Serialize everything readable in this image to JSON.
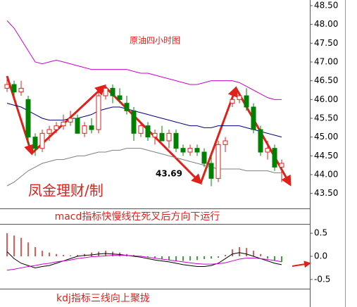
{
  "chart_data": [
    {
      "type": "candlestick",
      "title": "原油四小时图",
      "annotations": [
        "43.69",
        "凤金理财/制"
      ],
      "categories": [
        null,
        null,
        null,
        null,
        null,
        null,
        null,
        null,
        null,
        null,
        null,
        null,
        null,
        null,
        null,
        null,
        null,
        null,
        null,
        null,
        null,
        null,
        null,
        null,
        null,
        null,
        null,
        null,
        null,
        null,
        null,
        null,
        null,
        null,
        null,
        null,
        null,
        null,
        null,
        null
      ],
      "open": [
        46.3,
        46.4,
        46.2,
        46.0,
        45.0,
        44.7,
        45.1,
        45.2,
        45.3,
        45.4,
        45.5,
        45.1,
        45.3,
        45.2,
        46.1,
        46.3,
        46.1,
        45.9,
        45.7,
        45.1,
        45.3,
        45.0,
        45.1,
        44.9,
        45.1,
        44.7,
        44.6,
        44.7,
        44.6,
        44.3,
        43.9,
        44.8,
        45.9,
        46.0,
        46.1,
        45.8,
        45.2,
        44.6,
        44.7,
        44.2
      ],
      "high": [
        46.6,
        46.5,
        46.5,
        46.1,
        45.1,
        45.2,
        45.3,
        45.4,
        45.6,
        45.7,
        45.6,
        45.4,
        45.5,
        46.2,
        46.4,
        46.4,
        46.3,
        46.1,
        45.8,
        45.4,
        45.4,
        45.2,
        45.3,
        45.2,
        45.2,
        44.8,
        44.8,
        44.8,
        44.7,
        44.5,
        44.9,
        45.0,
        46.1,
        46.2,
        46.3,
        45.9,
        45.3,
        44.9,
        44.8,
        44.4
      ],
      "low": [
        46.2,
        46.1,
        46.1,
        44.8,
        44.5,
        44.6,
        44.9,
        45.1,
        45.2,
        45.3,
        45.1,
        45.0,
        45.1,
        45.1,
        46.0,
        45.9,
        45.9,
        45.6,
        44.9,
        45.0,
        44.9,
        44.8,
        44.9,
        44.7,
        44.6,
        44.5,
        44.5,
        44.5,
        44.2,
        43.69,
        43.8,
        44.6,
        45.8,
        45.9,
        45.7,
        45.1,
        44.5,
        44.4,
        44.1,
        43.8
      ],
      "close": [
        46.4,
        46.2,
        46.3,
        45.0,
        44.7,
        45.1,
        45.2,
        45.3,
        45.4,
        45.5,
        45.1,
        45.3,
        45.2,
        46.1,
        46.3,
        46.1,
        46.0,
        45.7,
        45.1,
        45.3,
        45.0,
        45.1,
        44.9,
        45.1,
        44.7,
        44.6,
        44.7,
        44.6,
        44.3,
        43.9,
        44.8,
        44.9,
        46.0,
        46.1,
        45.8,
        45.2,
        44.6,
        44.7,
        44.2,
        44.3
      ],
      "up_color": "#e0201a",
      "down_color": "#008000",
      "lines": [
        {
          "color": "#cc00cc",
          "values": [
            48.1,
            47.9,
            47.6,
            47.3,
            47.0,
            46.95,
            47.0,
            47.05,
            47.0,
            46.95,
            46.9,
            46.85,
            46.8,
            46.8,
            46.8,
            46.8,
            46.8,
            46.8,
            46.75,
            46.7,
            46.7,
            46.65,
            46.6,
            46.55,
            46.5,
            46.45,
            46.4,
            46.4,
            46.45,
            46.5,
            46.5,
            46.5,
            46.5,
            46.45,
            46.35,
            46.25,
            46.15,
            46.05,
            46.0,
            46.0
          ]
        },
        {
          "color": "#000080",
          "values": [
            45.9,
            45.85,
            45.8,
            45.7,
            45.6,
            45.5,
            45.45,
            45.45,
            45.45,
            45.5,
            45.5,
            45.55,
            45.6,
            45.7,
            45.75,
            45.8,
            45.8,
            45.75,
            45.7,
            45.65,
            45.6,
            45.55,
            45.5,
            45.45,
            45.4,
            45.35,
            45.3,
            45.3,
            45.25,
            45.25,
            45.3,
            45.3,
            45.3,
            45.3,
            45.25,
            45.2,
            45.15,
            45.1,
            45.05,
            45.0
          ]
        },
        {
          "color": "#808080",
          "values": [
            43.7,
            43.8,
            43.95,
            44.1,
            44.2,
            44.3,
            44.35,
            44.4,
            44.4,
            44.45,
            44.5,
            44.5,
            44.55,
            44.6,
            44.6,
            44.65,
            44.65,
            44.7,
            44.7,
            44.7,
            44.65,
            44.6,
            44.55,
            44.5,
            44.45,
            44.4,
            44.35,
            44.3,
            44.25,
            44.2,
            44.15,
            44.15,
            44.15,
            44.15,
            44.1,
            44.1,
            44.1,
            44.1,
            44.05,
            44.05
          ]
        }
      ],
      "ylim": [
        43.1,
        48.65
      ],
      "yticks": [
        {
          "value": 48.5,
          "label": "48.50"
        },
        {
          "value": 48,
          "label": "48.00"
        },
        {
          "value": 47.5,
          "label": "47.50"
        },
        {
          "value": 47,
          "label": "47.00"
        },
        {
          "value": 46.5,
          "label": "46.50"
        },
        {
          "value": 46,
          "label": "46.00"
        },
        {
          "value": 45.5,
          "label": "45.50"
        },
        {
          "value": 45,
          "label": "45.00"
        },
        {
          "value": 44.5,
          "label": "44.50"
        },
        {
          "value": 44,
          "label": "44.00"
        },
        {
          "value": 43.5,
          "label": "43.50"
        }
      ]
    },
    {
      "type": "macd",
      "title": "macd指标快慢线在死叉后方向下运行",
      "annotations": [
        "kdj指标三线向上聚拢"
      ],
      "histogram": [
        0.5,
        0.45,
        0.4,
        0.3,
        0.2,
        0.12,
        0.08,
        0.05,
        0.03,
        0.02,
        0.03,
        0.05,
        0.08,
        0.1,
        0.12,
        0.1,
        0.08,
        0.05,
        0.03,
        0.01,
        -0.02,
        -0.04,
        -0.06,
        -0.08,
        -0.1,
        -0.1,
        -0.09,
        -0.08,
        -0.06,
        -0.05,
        -0.03,
        0.03,
        0.15,
        0.2,
        0.18,
        0.12,
        0.05,
        -0.05,
        -0.1,
        -0.12
      ],
      "pos_color": "#e0201a",
      "neg_color": "#008000",
      "lines": [
        {
          "color": "#000000",
          "values": [
            0.1,
            -0.05,
            -0.15,
            -0.2,
            -0.25,
            -0.22,
            -0.2,
            -0.15,
            -0.1,
            -0.05,
            0,
            0.02,
            0.03,
            0.05,
            0.06,
            0.05,
            0.04,
            0.02,
            0,
            -0.02,
            -0.05,
            -0.08,
            -0.1,
            -0.12,
            -0.15,
            -0.18,
            -0.2,
            -0.22,
            -0.22,
            -0.2,
            -0.15,
            -0.05,
            0.05,
            0.08,
            0.05,
            0,
            -0.05,
            -0.1,
            -0.15,
            -0.18
          ]
        },
        {
          "color": "#cc00cc",
          "values": [
            -0.3,
            -0.28,
            -0.25,
            -0.22,
            -0.2,
            -0.17,
            -0.15,
            -0.12,
            -0.1,
            -0.08,
            -0.05,
            -0.03,
            -0.01,
            0,
            0.01,
            0.02,
            0.02,
            0.02,
            0.01,
            0,
            -0.02,
            -0.04,
            -0.06,
            -0.08,
            -0.1,
            -0.12,
            -0.14,
            -0.16,
            -0.17,
            -0.17,
            -0.16,
            -0.14,
            -0.1,
            -0.06,
            -0.04,
            -0.04,
            -0.05,
            -0.07,
            -0.09,
            -0.12
          ]
        }
      ],
      "ylim": [
        -0.7,
        0.7
      ],
      "yticks": [
        0.5,
        {
          "value": 0,
          "label": "0.0"
        },
        -0.5
      ]
    }
  ]
}
